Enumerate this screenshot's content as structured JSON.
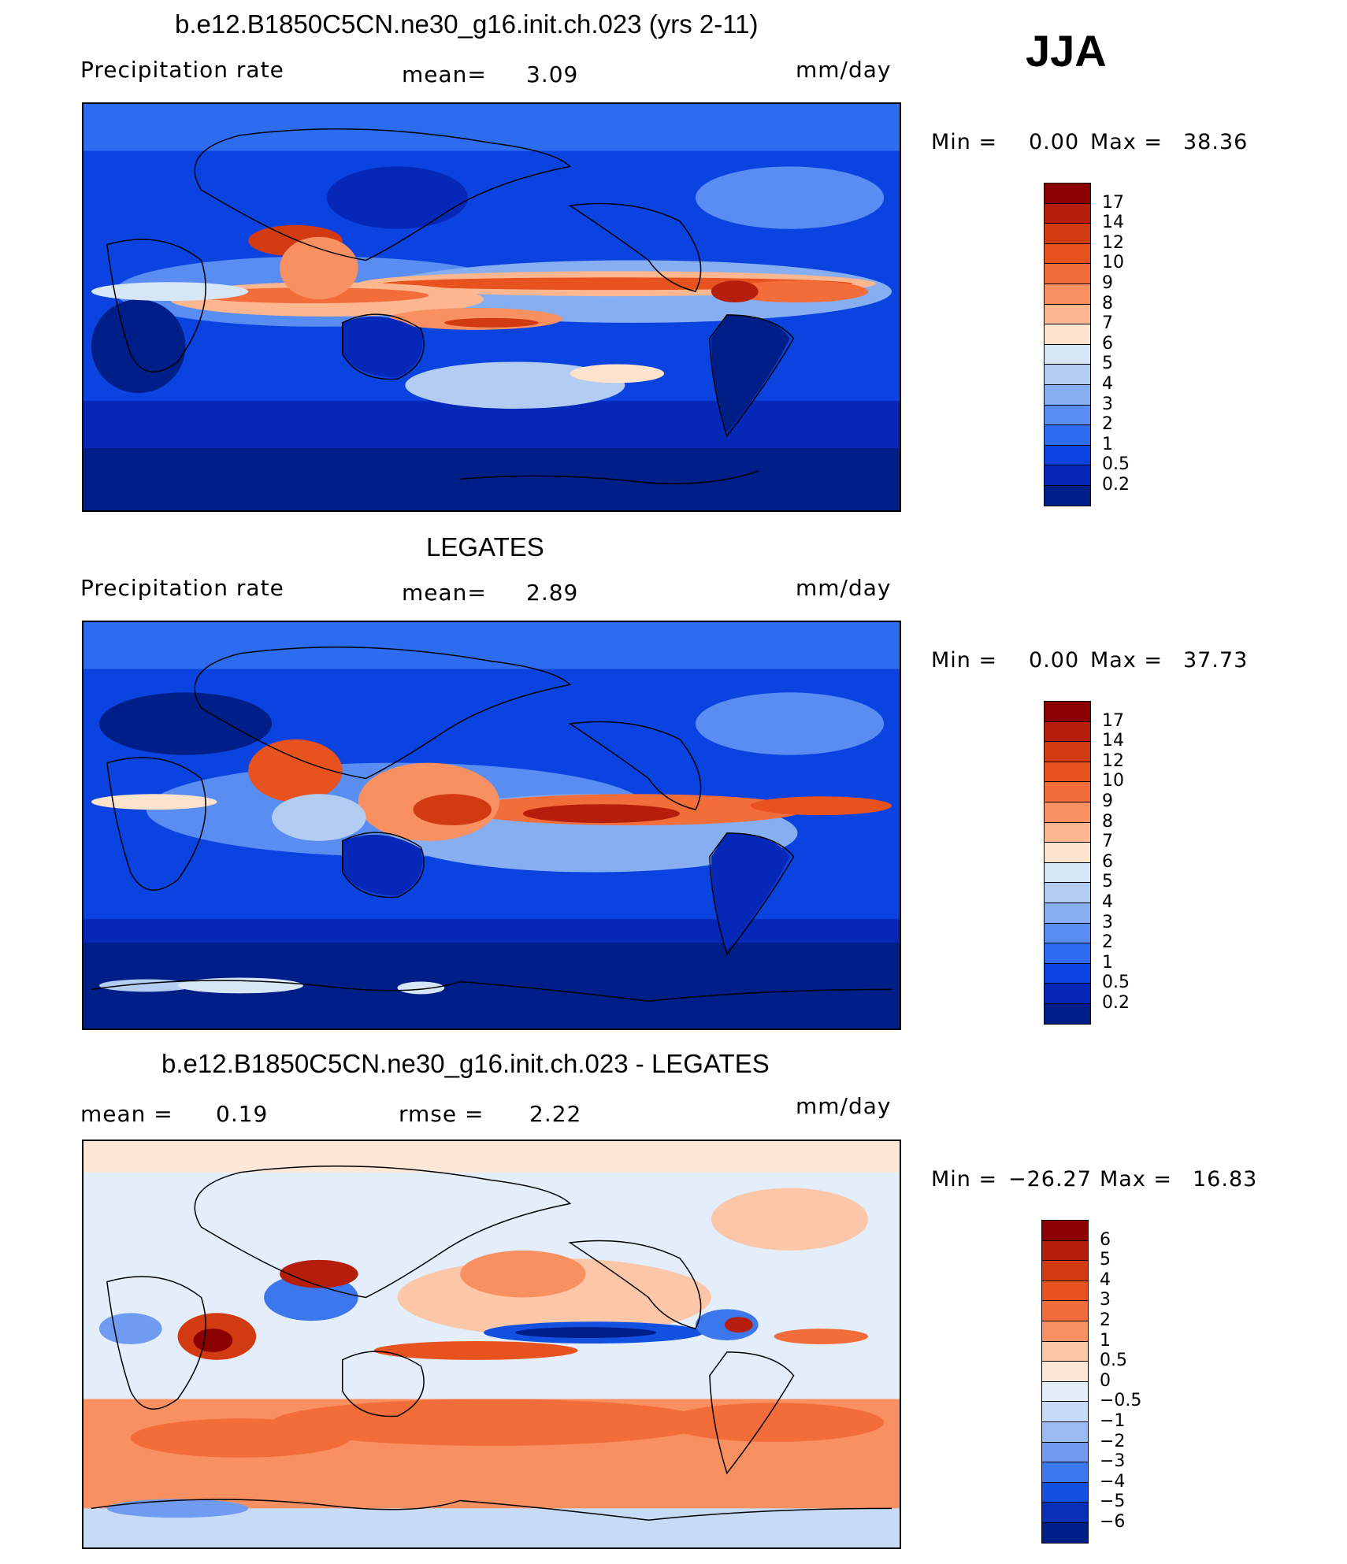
{
  "season": "JJA",
  "panels": [
    {
      "id": "model",
      "title": "b.e12.B1850C5CN.ne30_g16.init.ch.023 (yrs 2-11)",
      "left_label": "Precipitation  rate",
      "mid_label": "mean=",
      "mid_value": "3.09",
      "units": "mm/day",
      "min_label": "Min  =",
      "min_value": "0.00",
      "max_label": "Max  =",
      "max_value": "38.36",
      "colorbar_labels": [
        "17",
        "14",
        "12",
        "10",
        "9",
        "8",
        "7",
        "6",
        "5",
        "4",
        "3",
        "2",
        "1",
        "0.5",
        "0.2"
      ],
      "colorbar_colors": [
        "#8b0000",
        "#b41e0a",
        "#d23a12",
        "#e8521e",
        "#f36d3a",
        "#f99062",
        "#fcb690",
        "#fde2cc",
        "#d7e6f7",
        "#b2ccf2",
        "#86aef0",
        "#5a8df2",
        "#2d6bef",
        "#0b43e0",
        "#0528b8",
        "#001e88"
      ]
    },
    {
      "id": "obs",
      "title": "LEGATES",
      "left_label": "Precipitation  rate",
      "mid_label": "mean=",
      "mid_value": "2.89",
      "units": "mm/day",
      "min_label": "Min  =",
      "min_value": "0.00",
      "max_label": "Max  =",
      "max_value": "37.73",
      "colorbar_labels": [
        "17",
        "14",
        "12",
        "10",
        "9",
        "8",
        "7",
        "6",
        "5",
        "4",
        "3",
        "2",
        "1",
        "0.5",
        "0.2"
      ],
      "colorbar_colors": [
        "#8b0000",
        "#b41e0a",
        "#d23a12",
        "#e8521e",
        "#f36d3a",
        "#f99062",
        "#fcb690",
        "#fde2cc",
        "#d7e6f7",
        "#b2ccf2",
        "#86aef0",
        "#5a8df2",
        "#2d6bef",
        "#0b43e0",
        "#0528b8",
        "#001e88"
      ]
    },
    {
      "id": "diff",
      "title": "b.e12.B1850C5CN.ne30_g16.init.ch.023 - LEGATES",
      "left_label": "mean  =",
      "left_value": "0.19",
      "mid_label": "rmse  =",
      "mid_value": "2.22",
      "units": "mm/day",
      "min_label": "Min  =",
      "min_value": "−26.27",
      "max_label": "Max  =",
      "max_value": "16.83",
      "colorbar_labels": [
        "6",
        "5",
        "4",
        "3",
        "2",
        "1",
        "0.5",
        "0",
        "−0.5",
        "−1",
        "−2",
        "−3",
        "−4",
        "−5",
        "−6"
      ],
      "colorbar_colors": [
        "#8b0000",
        "#b41e0a",
        "#d23a12",
        "#e8521e",
        "#f36d3a",
        "#f99062",
        "#fcc7a8",
        "#fde8d8",
        "#e3eefa",
        "#c8dbf6",
        "#9bbcf2",
        "#6f9cf0",
        "#3d77ee",
        "#1250e2",
        "#0630b8",
        "#001e88"
      ]
    }
  ]
}
